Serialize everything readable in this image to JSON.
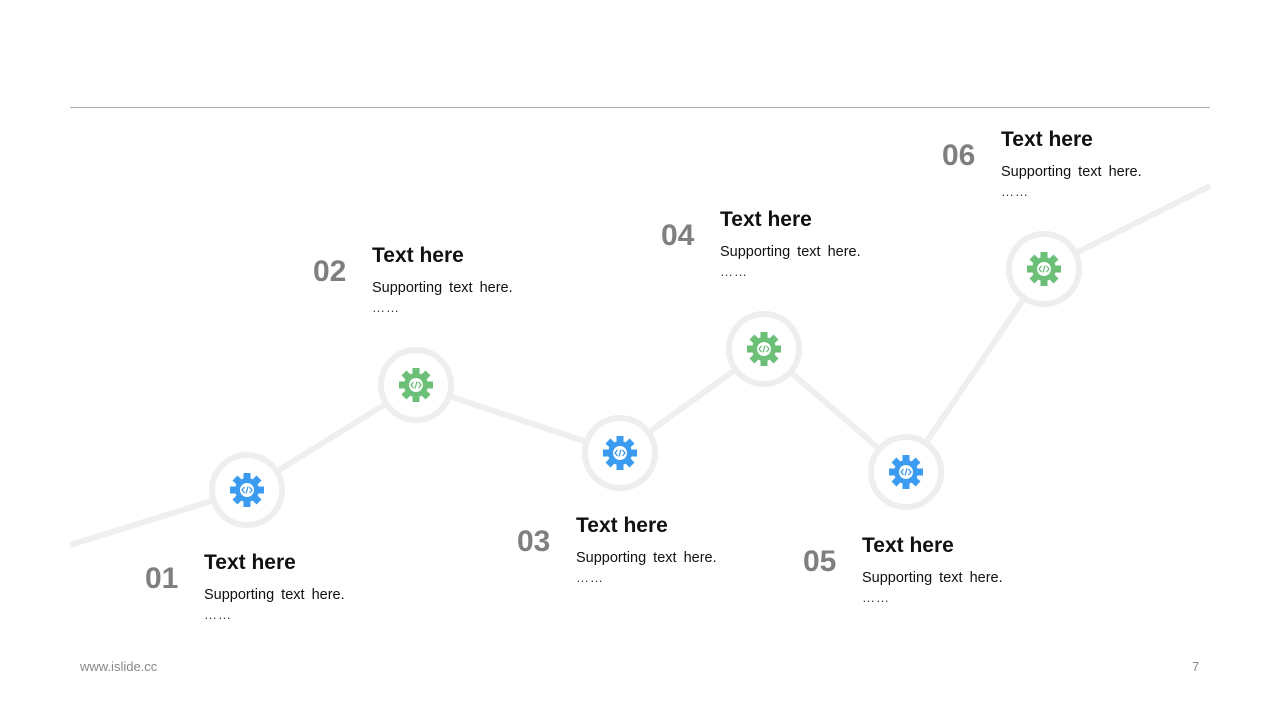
{
  "colors": {
    "blue": "#3a9bf0",
    "green": "#6bbf77",
    "line": "#efefef"
  },
  "steps": [
    {
      "num": "01",
      "title": "Text here",
      "sub": "Supporting text here.",
      "dots": "……",
      "icon": "gear-code-icon",
      "color": "blue"
    },
    {
      "num": "02",
      "title": "Text here",
      "sub": "Supporting text here.",
      "dots": "……",
      "icon": "gear-code-icon",
      "color": "green"
    },
    {
      "num": "03",
      "title": "Text here",
      "sub": "Supporting text here.",
      "dots": "……",
      "icon": "gear-code-icon",
      "color": "blue"
    },
    {
      "num": "04",
      "title": "Text here",
      "sub": "Supporting text here.",
      "dots": "……",
      "icon": "gear-code-icon",
      "color": "green"
    },
    {
      "num": "05",
      "title": "Text here",
      "sub": "Supporting text here.",
      "dots": "……",
      "icon": "gear-code-icon",
      "color": "blue"
    },
    {
      "num": "06",
      "title": "Text here",
      "sub": "Supporting text here.",
      "dots": "……",
      "icon": "gear-code-icon",
      "color": "green"
    }
  ],
  "footer": {
    "website": "www.islide.cc",
    "page": "7"
  }
}
